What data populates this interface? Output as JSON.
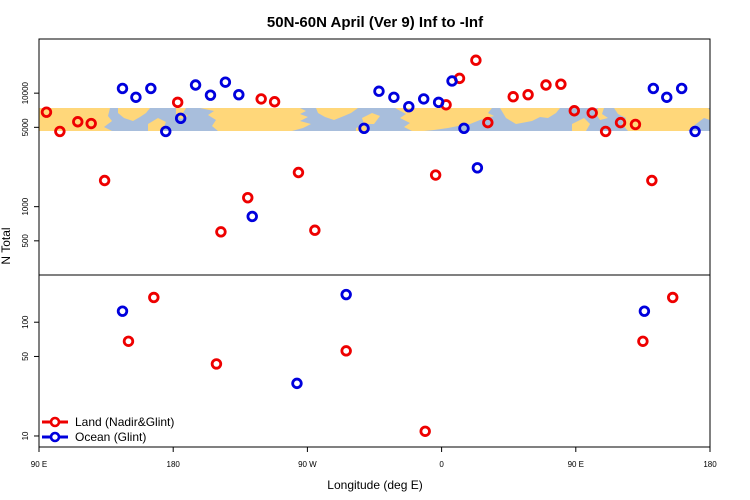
{
  "chart_data": {
    "type": "scatter",
    "title": "50N-60N April (Ver 9)   Inf to -Inf",
    "xlabel": "Longitude (deg E)",
    "ylabel": "N Total",
    "x_ticks": [
      {
        "value": 90,
        "label": "90 E"
      },
      {
        "value": 180,
        "label": "180"
      },
      {
        "value": 270,
        "label": "90 W"
      },
      {
        "value": 360,
        "label": "0"
      },
      {
        "value": 450,
        "label": "90 E"
      },
      {
        "value": 540,
        "label": "180"
      }
    ],
    "xlim": [
      90,
      540
    ],
    "panels": [
      {
        "name": "upper",
        "scale": "log",
        "ylim": [
          250,
          30000
        ],
        "y_ticks": [
          {
            "value": 500,
            "label": "500"
          },
          {
            "value": 1000,
            "label": "1000"
          },
          {
            "value": 5000,
            "label": "5000"
          },
          {
            "value": 10000,
            "label": "10000"
          }
        ],
        "land": [
          [
            95,
            6800
          ],
          [
            104,
            4600
          ],
          [
            116,
            5600
          ],
          [
            125,
            5400
          ],
          [
            134,
            1700
          ],
          [
            183,
            8300
          ],
          [
            212,
            600
          ],
          [
            230,
            1200
          ],
          [
            239,
            8900
          ],
          [
            248,
            8400
          ],
          [
            264,
            2000
          ],
          [
            275,
            620
          ],
          [
            356,
            1900
          ],
          [
            363,
            7900
          ],
          [
            372,
            13500
          ],
          [
            383,
            19500
          ],
          [
            391,
            5500
          ],
          [
            408,
            9300
          ],
          [
            418,
            9700
          ],
          [
            430,
            11800
          ],
          [
            440,
            12000
          ],
          [
            449,
            7000
          ],
          [
            461,
            6700
          ],
          [
            470,
            4600
          ],
          [
            480,
            5500
          ],
          [
            490,
            5300
          ],
          [
            501,
            1700
          ]
        ],
        "ocean": [
          [
            146,
            11000
          ],
          [
            155,
            9200
          ],
          [
            165,
            11000
          ],
          [
            175,
            4600
          ],
          [
            185,
            6000
          ],
          [
            195,
            11800
          ],
          [
            205,
            9600
          ],
          [
            215,
            12500
          ],
          [
            224,
            9700
          ],
          [
            233,
            820
          ],
          [
            308,
            4900
          ],
          [
            318,
            10400
          ],
          [
            328,
            9200
          ],
          [
            338,
            7600
          ],
          [
            348,
            8900
          ],
          [
            358,
            8300
          ],
          [
            367,
            12800
          ],
          [
            375,
            4900
          ],
          [
            384,
            2200
          ],
          [
            502,
            11000
          ],
          [
            511,
            9200
          ],
          [
            521,
            11000
          ],
          [
            530,
            4600
          ]
        ]
      },
      {
        "name": "lower",
        "scale": "log",
        "ylim": [
          8,
          260
        ],
        "y_ticks": [
          {
            "value": 10,
            "label": "10"
          },
          {
            "value": 50,
            "label": "50"
          },
          {
            "value": 100,
            "label": "100"
          }
        ],
        "land": [
          [
            150,
            68
          ],
          [
            167,
            165
          ],
          [
            209,
            43
          ],
          [
            296,
            56
          ],
          [
            349,
            11
          ],
          [
            495,
            68
          ],
          [
            515,
            165
          ]
        ],
        "ocean": [
          [
            146,
            125
          ],
          [
            263,
            29
          ],
          [
            296,
            175
          ],
          [
            496,
            125
          ]
        ]
      }
    ],
    "series": [
      {
        "name": "Land (Nadir&Glint)",
        "color": "#ee0000"
      },
      {
        "name": "Ocean (Glint)",
        "color": "#0000dd"
      }
    ],
    "legend_position": "bottom-left",
    "map_strip": {
      "ocean_color": "#a8bedc",
      "land_color": "#ffd77a",
      "y_range": [
        4000,
        7000
      ]
    }
  }
}
